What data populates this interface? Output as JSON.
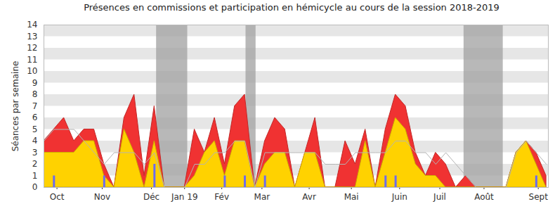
{
  "chart_data": {
    "type": "area",
    "title": "Présences en commissions et participation en hémicycle au cours de la session 2018-2019",
    "y_label": "Séances par semaine",
    "x": [
      0,
      1,
      2,
      3,
      4,
      5,
      6,
      7,
      8,
      9,
      10,
      11,
      12,
      13,
      14,
      15,
      16,
      17,
      18,
      19,
      20,
      21,
      22,
      23,
      24,
      25,
      26,
      27,
      28,
      29,
      30,
      31,
      32,
      33,
      34,
      35,
      36,
      37,
      38,
      39,
      40,
      41,
      42,
      43,
      44,
      45,
      46,
      47,
      48,
      49,
      50
    ],
    "xlim": [
      0,
      50.2
    ],
    "xticks": [
      {
        "value": 1.3,
        "label": "Oct"
      },
      {
        "value": 5.8,
        "label": "Nov"
      },
      {
        "value": 10.7,
        "label": "Déc"
      },
      {
        "value": 14,
        "label": "Jan 19"
      },
      {
        "value": 17.7,
        "label": "Fév"
      },
      {
        "value": 21.7,
        "label": "Mar"
      },
      {
        "value": 26.4,
        "label": "Avr"
      },
      {
        "value": 30.6,
        "label": "Mai"
      },
      {
        "value": 35.4,
        "label": "Juin"
      },
      {
        "value": 39.4,
        "label": "Juil"
      },
      {
        "value": 43.8,
        "label": "Août"
      },
      {
        "value": 49.2,
        "label": "Sept"
      }
    ],
    "ylim": [
      0,
      14
    ],
    "yticks": [
      0,
      1,
      2,
      3,
      4,
      5,
      6,
      7,
      8,
      9,
      10,
      11,
      12,
      13,
      14
    ],
    "grid": true,
    "shaded_ranges": [
      [
        11.2,
        14.3
      ],
      [
        20.1,
        21.1
      ],
      [
        41.8,
        45.7
      ]
    ],
    "series": [
      {
        "type": "area",
        "color": "#f03232",
        "values": [
          4,
          5,
          6,
          4,
          5,
          5,
          2,
          0,
          6,
          8,
          1,
          7,
          0,
          0,
          0,
          5,
          3,
          6,
          2,
          7,
          8,
          0,
          4,
          6,
          5,
          0,
          3,
          6,
          0,
          0,
          4,
          2,
          5,
          0,
          5,
          8,
          7,
          3,
          1,
          3,
          2,
          0,
          1,
          0,
          0,
          0,
          0,
          3,
          4,
          3,
          1
        ]
      },
      {
        "type": "area",
        "color": "#ffd200",
        "values": [
          3,
          3,
          3,
          3,
          4,
          4,
          1,
          0,
          5,
          3,
          0,
          4,
          0,
          0,
          0,
          1,
          3,
          4,
          1,
          4,
          4,
          0,
          2,
          3,
          3,
          0,
          3,
          3,
          0,
          0,
          0,
          0,
          4,
          0,
          3,
          6,
          5,
          2,
          1,
          1,
          0,
          0,
          0,
          0,
          0,
          0,
          0,
          3,
          4,
          2,
          0
        ]
      },
      {
        "type": "line",
        "color": "#b4b4b4",
        "values": [
          4,
          5,
          5,
          5,
          4,
          3,
          2,
          3,
          3,
          3,
          2,
          3,
          0,
          0,
          0,
          2,
          2,
          3,
          3,
          4,
          4,
          0,
          3,
          3,
          3,
          3,
          3,
          3,
          2,
          2,
          2,
          3,
          3,
          3,
          3,
          4,
          4,
          3,
          3,
          2,
          3,
          2,
          1,
          0,
          0,
          0,
          0,
          3,
          4,
          3,
          2
        ]
      },
      {
        "type": "bar",
        "color": "#6b6bf0",
        "values": [
          0,
          1,
          0,
          0,
          0,
          0,
          1,
          0,
          0,
          0,
          0,
          2,
          0,
          0,
          0,
          0,
          0,
          0,
          1,
          0,
          1,
          0,
          1,
          0,
          0,
          0,
          0,
          0,
          0,
          0,
          0,
          0,
          0,
          0,
          1,
          1,
          0,
          0,
          0,
          0,
          0,
          0,
          0,
          0,
          0,
          0,
          0,
          0,
          0,
          1,
          0
        ]
      }
    ]
  }
}
